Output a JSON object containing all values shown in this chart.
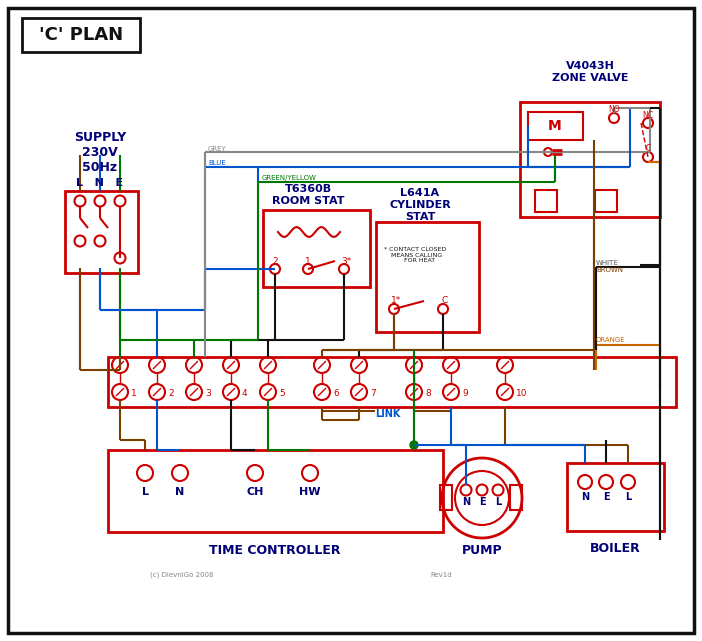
{
  "title": "'C' PLAN",
  "bg_color": "#ffffff",
  "red": "#cc0000",
  "blue": "#0055cc",
  "green": "#007700",
  "brown": "#7B3F00",
  "grey": "#888888",
  "orange": "#cc6600",
  "black": "#111111",
  "dark_blue": "#000077",
  "supply_text": "SUPPLY\n230V\n50Hz",
  "room_stat_title": "T6360B\nROOM STAT",
  "cyl_stat_title": "L641A\nCYLINDER\nSTAT",
  "zone_valve_title": "V4043H\nZONE VALVE",
  "time_ctrl_title": "TIME CONTROLLER",
  "pump_title": "PUMP",
  "boiler_title": "BOILER",
  "link_label": "LINK",
  "copyright": "(c) DievniGo 2008",
  "rev": "Rev1d"
}
